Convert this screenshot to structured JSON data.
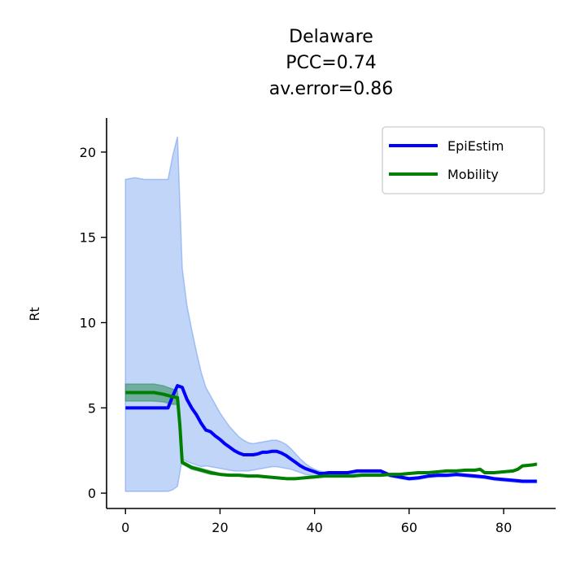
{
  "chart_data": {
    "type": "line",
    "title_lines": [
      "Delaware",
      "PCC=0.74",
      "av.error=0.86"
    ],
    "xlabel": "",
    "ylabel": "Rt",
    "xlim": [
      -4,
      91
    ],
    "ylim": [
      -0.9,
      22
    ],
    "xticks": [
      0,
      20,
      40,
      60,
      80
    ],
    "yticks": [
      0,
      5,
      10,
      15,
      20
    ],
    "grid": false,
    "legend_position": "top-right",
    "series": [
      {
        "name": "EpiEstim",
        "color": "#0000ff",
        "band_color": "#6495ed",
        "x": [
          0,
          2,
          4,
          6,
          8,
          9,
          10,
          11,
          12,
          13,
          14,
          15,
          16,
          17,
          18,
          19,
          20,
          21,
          22,
          23,
          24,
          25,
          26,
          27,
          28,
          29,
          30,
          31,
          32,
          33,
          34,
          35,
          36,
          37,
          38,
          39,
          40,
          41,
          42,
          43,
          44,
          45,
          46,
          47,
          48,
          49,
          50,
          52,
          54,
          56,
          58,
          60,
          62,
          64,
          66,
          68,
          70,
          72,
          74,
          76,
          78,
          80,
          82,
          84,
          86,
          87
        ],
        "y": [
          5.0,
          5.0,
          5.0,
          5.0,
          5.0,
          5.0,
          5.7,
          6.3,
          6.2,
          5.5,
          5.0,
          4.6,
          4.1,
          3.7,
          3.6,
          3.35,
          3.15,
          2.9,
          2.7,
          2.5,
          2.35,
          2.25,
          2.25,
          2.25,
          2.3,
          2.4,
          2.4,
          2.45,
          2.45,
          2.35,
          2.2,
          2.0,
          1.8,
          1.6,
          1.45,
          1.35,
          1.25,
          1.15,
          1.15,
          1.2,
          1.2,
          1.2,
          1.2,
          1.2,
          1.25,
          1.3,
          1.3,
          1.3,
          1.3,
          1.05,
          0.95,
          0.85,
          0.9,
          1.0,
          1.05,
          1.05,
          1.1,
          1.05,
          1.0,
          0.95,
          0.85,
          0.8,
          0.75,
          0.7,
          0.7,
          0.7
        ],
        "upper": [
          18.4,
          18.5,
          18.4,
          18.4,
          18.4,
          18.4,
          19.8,
          20.9,
          13.2,
          11.0,
          9.6,
          8.3,
          7.1,
          6.2,
          5.7,
          5.2,
          4.7,
          4.3,
          3.9,
          3.6,
          3.3,
          3.1,
          2.95,
          2.9,
          2.95,
          3.0,
          3.05,
          3.1,
          3.1,
          3.0,
          2.85,
          2.6,
          2.3,
          2.0,
          1.75,
          1.55,
          1.4,
          1.3,
          1.25,
          1.25,
          1.25,
          1.25,
          1.25,
          1.25,
          1.3,
          1.35,
          1.35,
          1.35,
          1.35,
          1.1,
          1.0,
          0.9,
          0.95,
          1.05,
          1.1,
          1.1,
          1.15,
          1.1,
          1.05,
          1.0,
          0.9,
          0.85,
          0.8,
          0.75,
          0.75,
          0.75
        ],
        "lower": [
          0.1,
          0.1,
          0.1,
          0.1,
          0.1,
          0.1,
          0.2,
          0.4,
          2.0,
          1.85,
          1.75,
          1.65,
          1.55,
          1.6,
          1.55,
          1.5,
          1.45,
          1.4,
          1.35,
          1.3,
          1.3,
          1.3,
          1.3,
          1.35,
          1.4,
          1.45,
          1.5,
          1.55,
          1.55,
          1.5,
          1.45,
          1.4,
          1.3,
          1.2,
          1.1,
          1.05,
          1.0,
          0.95,
          0.95,
          1.0,
          1.05,
          1.05,
          1.05,
          1.05,
          1.1,
          1.1,
          1.15,
          1.15,
          1.15,
          0.95,
          0.85,
          0.75,
          0.8,
          0.9,
          0.95,
          0.95,
          1.0,
          0.95,
          0.9,
          0.85,
          0.75,
          0.7,
          0.65,
          0.6,
          0.6,
          0.6
        ]
      },
      {
        "name": "Mobility",
        "color": "#008000",
        "band_color": "#2e8b57",
        "x": [
          0,
          2,
          4,
          6,
          8,
          10,
          11,
          11.5,
          12,
          13,
          14,
          16,
          18,
          20,
          22,
          24,
          26,
          28,
          30,
          32,
          34,
          36,
          38,
          40,
          42,
          44,
          46,
          48,
          50,
          52,
          54,
          56,
          58,
          60,
          62,
          64,
          66,
          68,
          70,
          72,
          74,
          75,
          76,
          78,
          80,
          82,
          83,
          84,
          86,
          87
        ],
        "y": [
          5.9,
          5.9,
          5.9,
          5.9,
          5.8,
          5.65,
          5.6,
          4.0,
          1.8,
          1.65,
          1.5,
          1.35,
          1.2,
          1.1,
          1.05,
          1.05,
          1.0,
          1.0,
          0.95,
          0.9,
          0.85,
          0.85,
          0.9,
          0.95,
          1.0,
          1.0,
          1.0,
          1.0,
          1.05,
          1.05,
          1.05,
          1.1,
          1.1,
          1.15,
          1.2,
          1.2,
          1.25,
          1.3,
          1.3,
          1.35,
          1.35,
          1.4,
          1.2,
          1.2,
          1.25,
          1.3,
          1.4,
          1.6,
          1.65,
          1.7
        ],
        "upper": [
          6.4,
          6.4,
          6.4,
          6.4,
          6.3,
          6.1,
          6.0,
          4.3,
          1.9,
          1.75,
          1.6,
          1.45,
          1.3,
          1.15,
          1.1,
          1.1,
          1.05,
          1.05,
          1.0,
          0.95,
          0.9,
          0.9,
          0.95,
          1.0,
          1.05,
          1.05,
          1.05,
          1.05,
          1.1,
          1.1,
          1.1,
          1.15,
          1.15,
          1.2,
          1.25,
          1.25,
          1.3,
          1.35,
          1.35,
          1.4,
          1.4,
          1.45,
          1.25,
          1.25,
          1.3,
          1.35,
          1.45,
          1.65,
          1.7,
          1.75
        ],
        "lower": [
          5.4,
          5.4,
          5.4,
          5.4,
          5.35,
          5.2,
          5.2,
          3.7,
          1.7,
          1.55,
          1.4,
          1.25,
          1.1,
          1.05,
          1.0,
          1.0,
          0.95,
          0.95,
          0.9,
          0.85,
          0.8,
          0.8,
          0.85,
          0.9,
          0.95,
          0.95,
          0.95,
          0.95,
          1.0,
          1.0,
          1.0,
          1.05,
          1.05,
          1.1,
          1.15,
          1.15,
          1.2,
          1.25,
          1.25,
          1.3,
          1.3,
          1.35,
          1.15,
          1.15,
          1.2,
          1.25,
          1.35,
          1.55,
          1.6,
          1.65
        ]
      }
    ]
  }
}
